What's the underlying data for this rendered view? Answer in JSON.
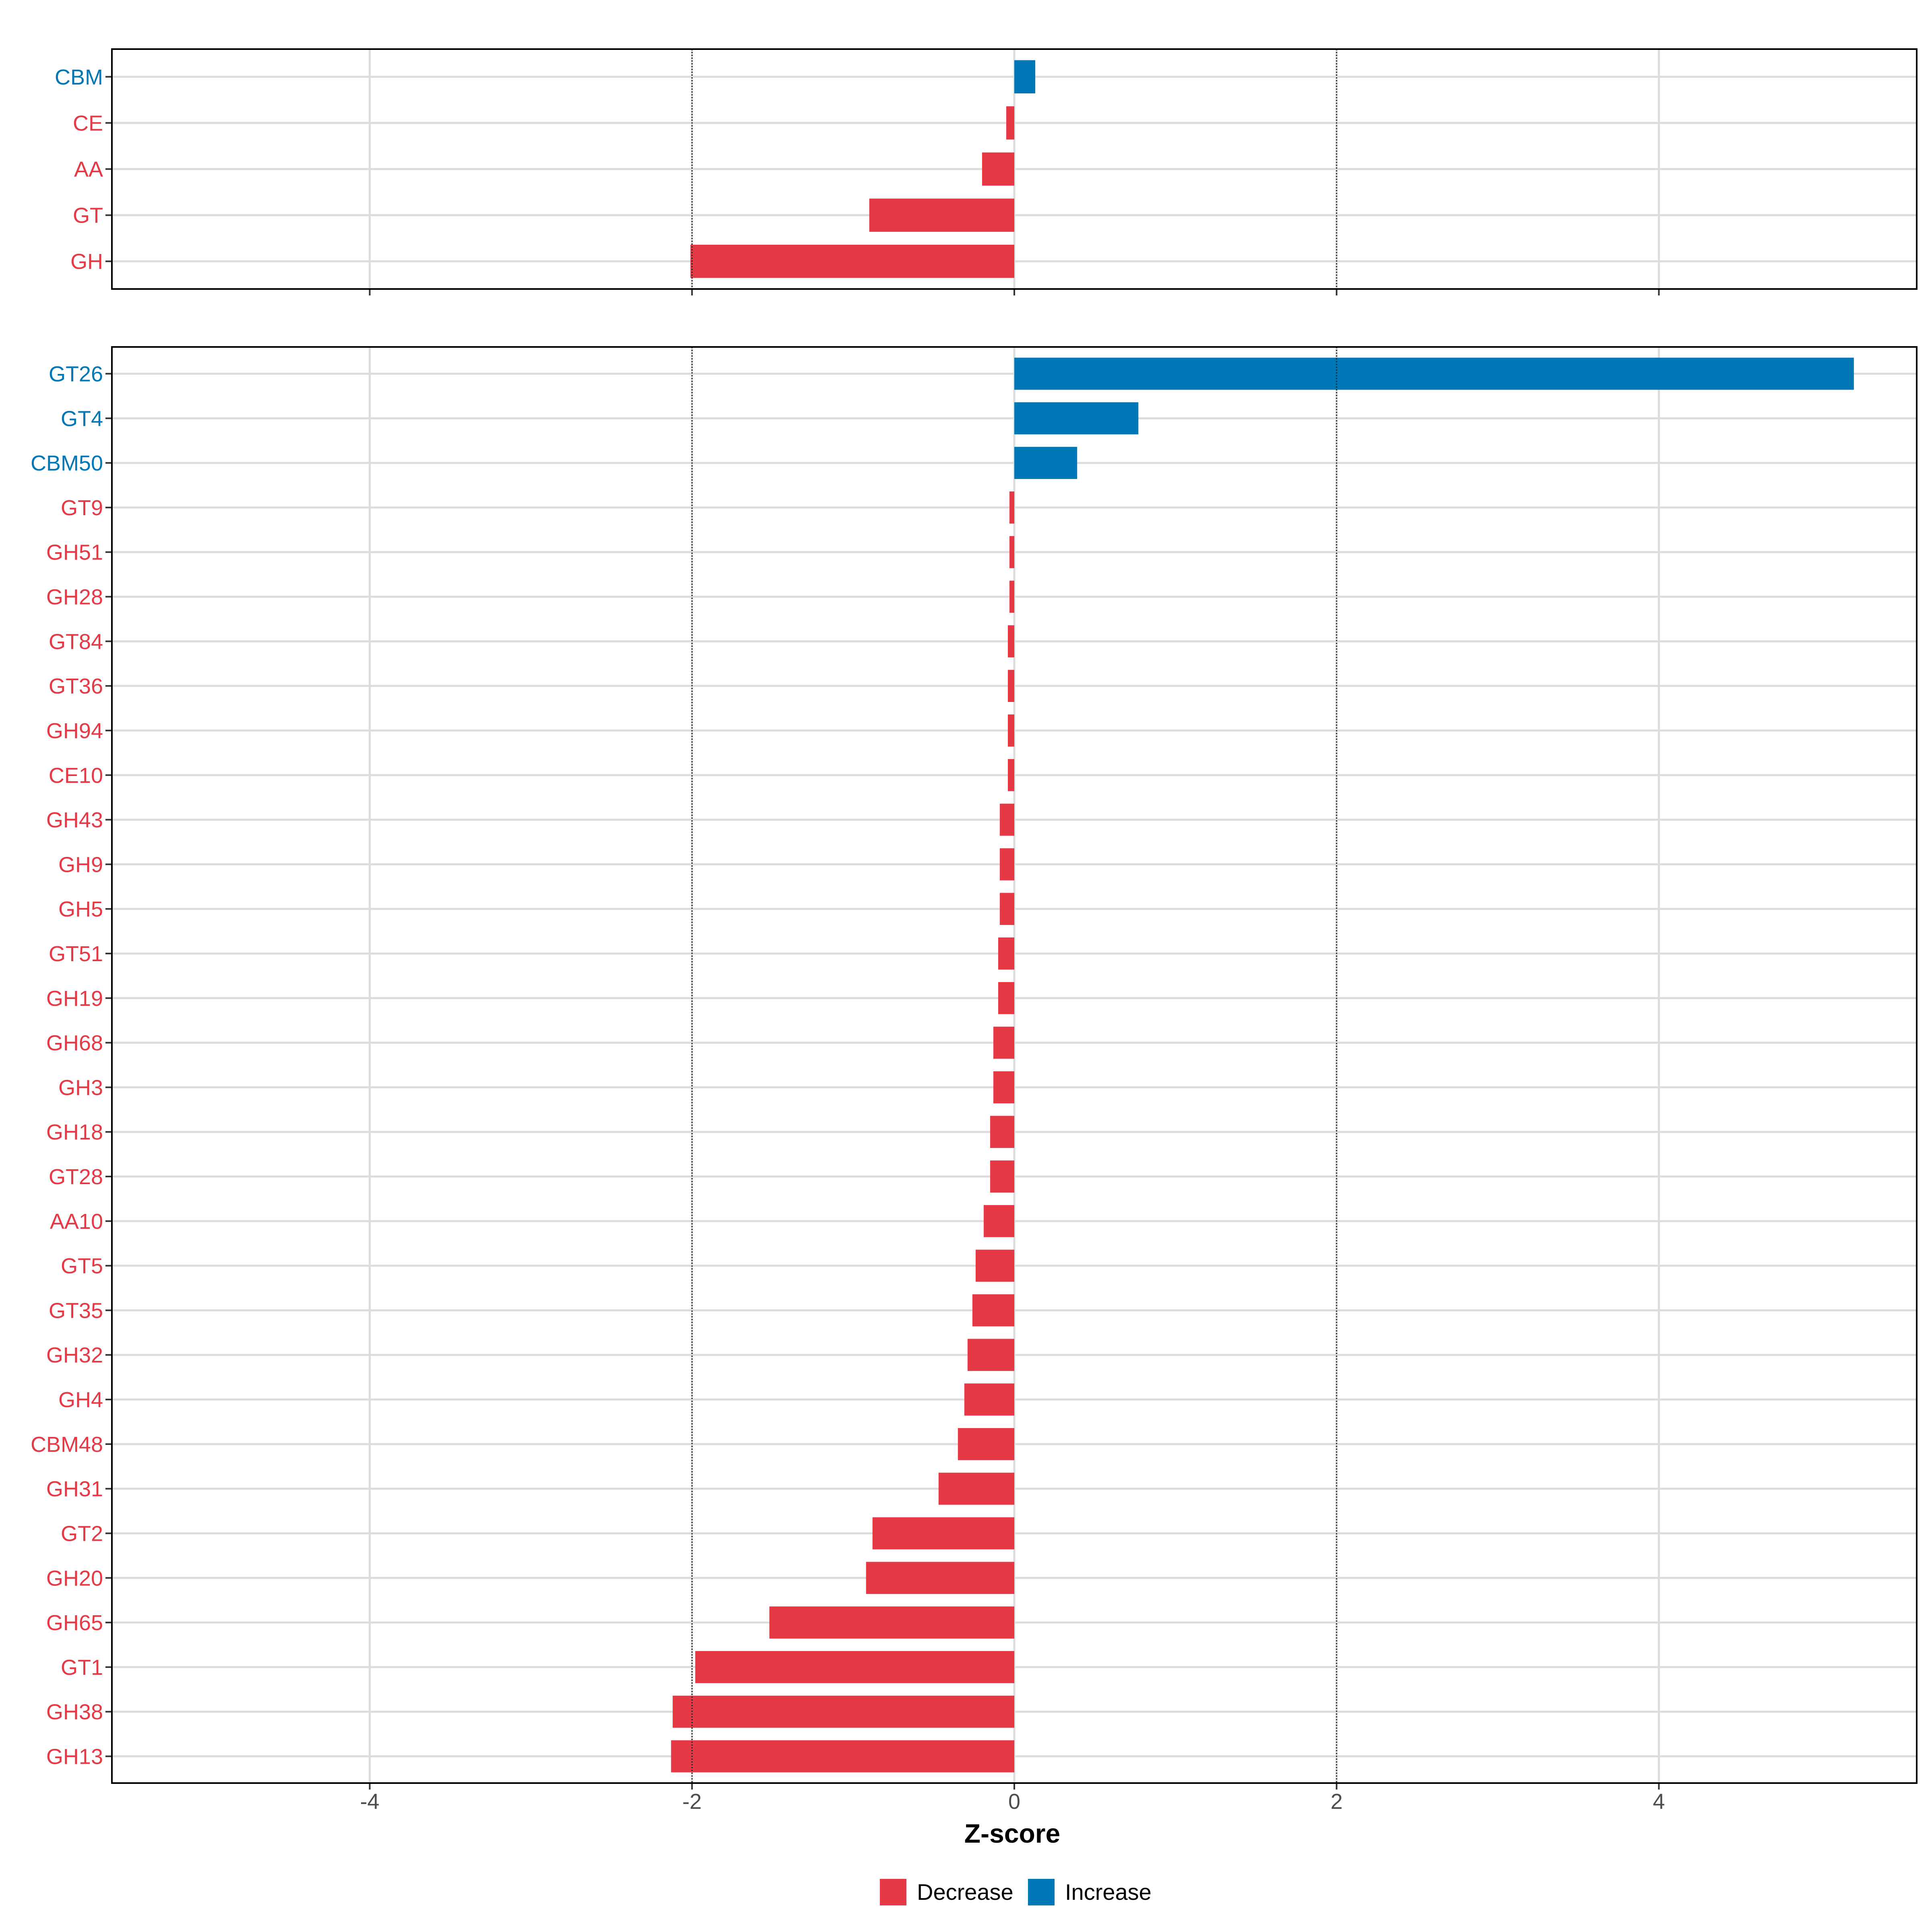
{
  "chart_data": {
    "type": "bar",
    "orientation": "horizontal",
    "xlabel": "Z-score",
    "xlim": [
      -5.6,
      5.6
    ],
    "xticks": [
      -4,
      -2,
      0,
      2,
      4
    ],
    "xtick_labels": [
      "-4",
      "-2",
      "0",
      "2",
      "4"
    ],
    "reference_lines": [
      -2,
      2
    ],
    "colors": {
      "Decrease": "#e63946",
      "Increase": "#0077b6"
    },
    "legend": {
      "position": "bottom",
      "entries": [
        {
          "label": "Decrease",
          "color": "#e63946"
        },
        {
          "label": "Increase",
          "color": "#0077b6"
        }
      ]
    },
    "panels": [
      {
        "name": "class",
        "categories": [
          "CBM",
          "CE",
          "AA",
          "GT",
          "GH"
        ],
        "values": [
          0.13,
          -0.05,
          -0.2,
          -0.9,
          -2.01
        ],
        "direction": [
          "Increase",
          "Decrease",
          "Decrease",
          "Decrease",
          "Decrease"
        ]
      },
      {
        "name": "family",
        "categories": [
          "GT26",
          "GT4",
          "CBM50",
          "GT9",
          "GH51",
          "GH28",
          "GT84",
          "GT36",
          "GH94",
          "CE10",
          "GH43",
          "GH9",
          "GH5",
          "GT51",
          "GH19",
          "GH68",
          "GH3",
          "GH18",
          "GT28",
          "AA10",
          "GT5",
          "GT35",
          "GH32",
          "GH4",
          "CBM48",
          "GH31",
          "GT2",
          "GH20",
          "GH65",
          "GT1",
          "GH38",
          "GH13"
        ],
        "values": [
          5.21,
          0.77,
          0.39,
          -0.03,
          -0.03,
          -0.03,
          -0.04,
          -0.04,
          -0.04,
          -0.04,
          -0.09,
          -0.09,
          -0.09,
          -0.1,
          -0.1,
          -0.13,
          -0.13,
          -0.15,
          -0.15,
          -0.19,
          -0.24,
          -0.26,
          -0.29,
          -0.31,
          -0.35,
          -0.47,
          -0.88,
          -0.92,
          -1.52,
          -1.98,
          -2.12,
          -2.13
        ],
        "direction": [
          "Increase",
          "Increase",
          "Increase",
          "Decrease",
          "Decrease",
          "Decrease",
          "Decrease",
          "Decrease",
          "Decrease",
          "Decrease",
          "Decrease",
          "Decrease",
          "Decrease",
          "Decrease",
          "Decrease",
          "Decrease",
          "Decrease",
          "Decrease",
          "Decrease",
          "Decrease",
          "Decrease",
          "Decrease",
          "Decrease",
          "Decrease",
          "Decrease",
          "Decrease",
          "Decrease",
          "Decrease",
          "Decrease",
          "Decrease",
          "Decrease",
          "Decrease"
        ]
      }
    ]
  }
}
